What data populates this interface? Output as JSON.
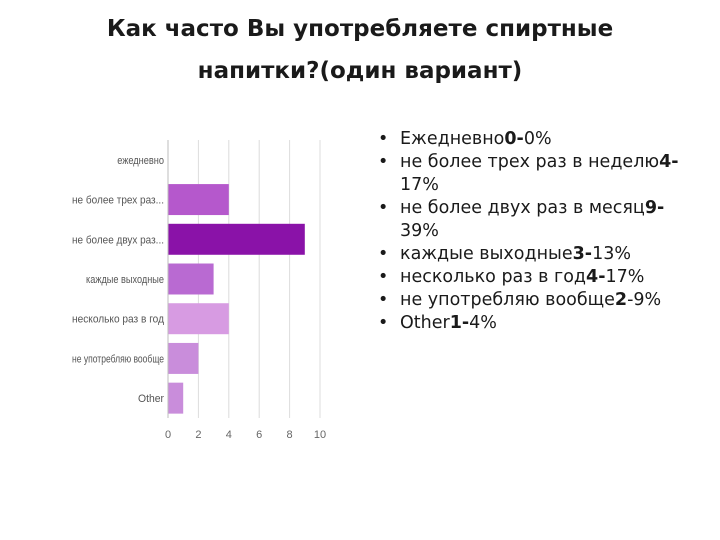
{
  "slide": {
    "title_line1": "Как часто Вы употребляете спиртные",
    "title_line2": "напитки?(один вариант)"
  },
  "chart_data": {
    "type": "bar",
    "orientation": "horizontal",
    "categories": [
      "ежедневно",
      "не более трех раз...",
      "не более двух раз...",
      "каждые выходные",
      "несколько раз в год",
      "не употребляю вообще",
      "Other"
    ],
    "values": [
      0,
      4,
      9,
      3,
      4,
      2,
      1
    ],
    "colors": [
      "#c07ed8",
      "#b558cc",
      "#8a12a8",
      "#b96ad2",
      "#d79be2",
      "#c98ddb",
      "#c98ddb"
    ],
    "xlim": [
      0,
      10
    ],
    "xticks": [
      0,
      2,
      4,
      6,
      8,
      10
    ],
    "grid": true
  },
  "bullets": [
    {
      "text": "Ежедневно",
      "bold": "0-",
      "pct": "0%"
    },
    {
      "text": "не более трех раз в неделю",
      "bold": "4-",
      "pct": "17%"
    },
    {
      "text": "не более двух раз в месяц",
      "bold": "9-",
      "pct": "39%"
    },
    {
      "text": "каждые выходные",
      "bold": "3-",
      "pct": "13%"
    },
    {
      "text": "несколько раз в год",
      "bold": "4-",
      "pct": "17%"
    },
    {
      "text": "не употребляю вообще",
      "bold": "2",
      "pct": "-9%"
    },
    {
      "text": "Other",
      "bold": "1-",
      "pct": "4%"
    }
  ]
}
